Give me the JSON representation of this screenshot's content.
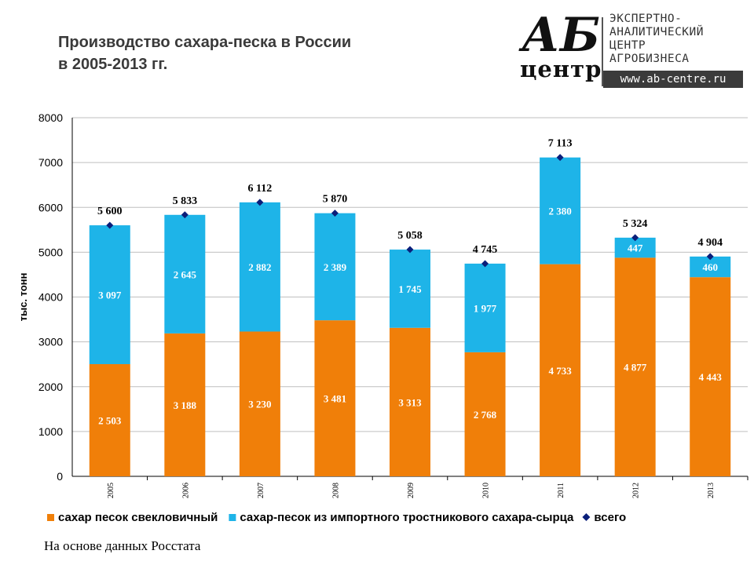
{
  "title_line1": "Производство сахара-песка в России",
  "title_line2": "в 2005-2013 гг.",
  "logo": {
    "ab": "АБ",
    "centr": "центр",
    "line1": "ЭКСПЕРТНО-",
    "line2": "АНАЛИТИЧЕСКИЙ",
    "line3": "ЦЕНТР",
    "line4": "АГРОБИЗНЕСА",
    "url": "www.ab-centre.ru"
  },
  "source": "На основе данных Росстата",
  "colors": {
    "beet": "#F07F09",
    "cane": "#1EB4E8",
    "total": "#0B1F7A",
    "grid": "#BFBFBF",
    "axis": "#000000"
  },
  "chart_data": {
    "type": "bar",
    "stacked": true,
    "categories": [
      "2005",
      "2006",
      "2007",
      "2008",
      "2009",
      "2010",
      "2011",
      "2012",
      "2013"
    ],
    "series": [
      {
        "name": "сахар песок свекловичный",
        "values": [
          2503,
          3188,
          3230,
          3481,
          3313,
          2768,
          4733,
          4877,
          4443
        ],
        "labels": [
          "2 503",
          "3 188",
          "3 230",
          "3 481",
          "3 313",
          "2 768",
          "4 733",
          "4 877",
          "4 443"
        ]
      },
      {
        "name": "сахар-песок из импортного тростникового сахара-сырца",
        "values": [
          3097,
          2645,
          2882,
          2389,
          1745,
          1977,
          2380,
          447,
          460
        ],
        "labels": [
          "3 097",
          "2 645",
          "2 882",
          "2 389",
          "1 745",
          "1 977",
          "2 380",
          "447",
          "460"
        ]
      },
      {
        "name": "всего",
        "type": "scatter",
        "values": [
          5600,
          5833,
          6112,
          5870,
          5058,
          4745,
          7113,
          5324,
          4904
        ],
        "labels": [
          "5 600",
          "5 833",
          "6 112",
          "5 870",
          "5 058",
          "4 745",
          "7 113",
          "5 324",
          "4 904"
        ]
      }
    ],
    "ylabel": "тыс. тонн",
    "ylim": [
      0,
      8000
    ],
    "yticks": [
      "0",
      "1000",
      "2000",
      "3000",
      "4000",
      "5000",
      "6000",
      "7000",
      "8000"
    ],
    "grid": true,
    "legend_position": "bottom"
  }
}
